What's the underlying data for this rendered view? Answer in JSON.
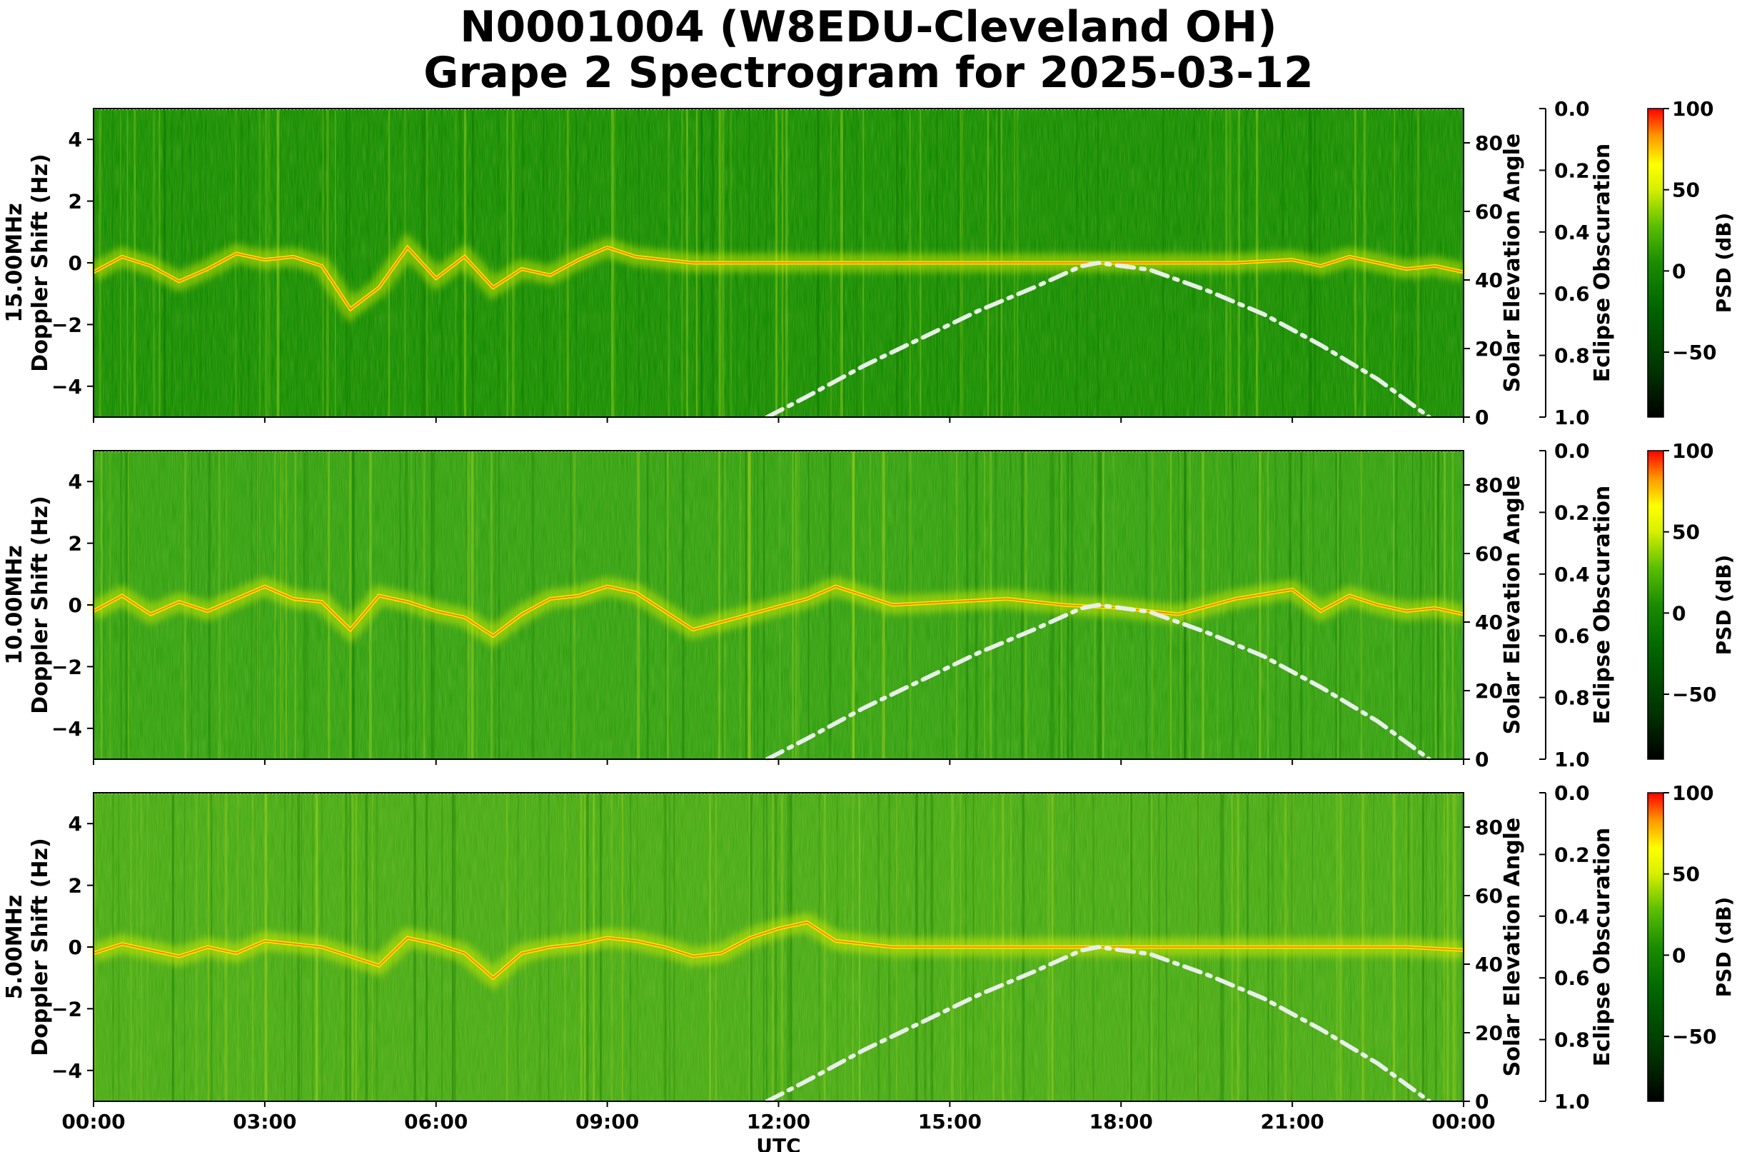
{
  "chart_data": {
    "type": "heatmap",
    "title": "N0001004 (W8EDU-Cleveland OH)",
    "subtitle": "Grape 2 Spectrogram for 2025-03-12",
    "xlabel": "UTC",
    "x_ticks": [
      "00:00",
      "03:00",
      "06:00",
      "09:00",
      "12:00",
      "15:00",
      "18:00",
      "21:00",
      "00:00"
    ],
    "x_range_hours": [
      0,
      24
    ],
    "ylabel": "Doppler Shift (Hz)",
    "ylim": [
      -5,
      5
    ],
    "y_ticks": [
      "4",
      "2",
      "0",
      "−2",
      "−4"
    ],
    "y_tick_values": [
      4,
      2,
      0,
      -2,
      -4
    ],
    "right_axis_label": "Solar Elevation Angle",
    "right_axis_range": [
      0,
      90
    ],
    "right_ticks": [
      "80",
      "60",
      "40",
      "20",
      "0"
    ],
    "right_tick_values": [
      80,
      60,
      40,
      20,
      0
    ],
    "obscuration_label": "Eclipse Obscuration",
    "obscuration_range": [
      0.0,
      1.0
    ],
    "obscuration_ticks": [
      "0.0",
      "0.2",
      "0.4",
      "0.6",
      "0.8",
      "1.0"
    ],
    "colorbar_label": "PSD (dB)",
    "colorbar_range": [
      -90,
      100
    ],
    "colorbar_ticks": [
      "100",
      "50",
      "0",
      "−50"
    ],
    "colorbar_tick_values": [
      100,
      50,
      0,
      -50
    ],
    "colormap": [
      "#000000",
      "#006400",
      "#1a8c00",
      "#3aaa00",
      "#7cd000",
      "#d8f000",
      "#ffff00",
      "#ff8c00",
      "#ff0000"
    ],
    "solar_elevation_curve": {
      "style": "dash-dot",
      "color": "#e8efe8",
      "points_hours": [
        11.8,
        12.5,
        13.5,
        14.5,
        15.5,
        16.5,
        17.3,
        17.6,
        18.5,
        19.5,
        20.5,
        21.5,
        22.5,
        23.4
      ],
      "points_degrees": [
        0,
        6,
        15,
        23,
        31,
        38,
        44,
        45,
        43,
        37,
        30,
        21,
        11,
        0
      ]
    },
    "panels": [
      {
        "name": "15.00MHz",
        "ylabel_top": "15.00MHz",
        "ylabel_bottom": "Doppler Shift (Hz)",
        "background": "#118a00",
        "trace_hours": [
          0,
          0.5,
          1,
          1.5,
          2,
          2.5,
          3,
          3.5,
          4,
          4.5,
          5,
          5.5,
          6,
          6.5,
          7,
          7.5,
          8,
          8.5,
          9,
          9.5,
          10,
          10.5,
          13,
          14,
          15,
          16,
          17,
          18,
          19,
          20,
          21,
          21.5,
          22,
          22.5,
          23,
          23.5,
          24
        ],
        "trace_hz": [
          -0.3,
          0.2,
          -0.1,
          -0.6,
          -0.2,
          0.3,
          0.1,
          0.2,
          -0.1,
          -1.5,
          -0.8,
          0.5,
          -0.5,
          0.2,
          -0.8,
          -0.2,
          -0.4,
          0.1,
          0.5,
          0.2,
          0.1,
          0.0,
          0.0,
          0.0,
          0.0,
          0.0,
          0.0,
          0.0,
          0.0,
          0.0,
          0.1,
          -0.1,
          0.2,
          0.0,
          -0.2,
          -0.1,
          -0.3
        ]
      },
      {
        "name": "10.00MHz",
        "ylabel_top": "10.00MHz",
        "ylabel_bottom": "Doppler Shift (Hz)",
        "background": "#2f9e10",
        "trace_hours": [
          0,
          0.5,
          1,
          1.5,
          2,
          2.5,
          3,
          3.5,
          4,
          4.5,
          5,
          5.5,
          6,
          6.5,
          7,
          7.5,
          8,
          8.5,
          9,
          9.5,
          10,
          10.5,
          12.5,
          13,
          14,
          15,
          16,
          17,
          18,
          19,
          20,
          21,
          21.5,
          22,
          22.5,
          23,
          23.5,
          24
        ],
        "trace_hz": [
          -0.2,
          0.3,
          -0.3,
          0.1,
          -0.2,
          0.2,
          0.6,
          0.2,
          0.1,
          -0.8,
          0.3,
          0.1,
          -0.2,
          -0.4,
          -1.0,
          -0.3,
          0.2,
          0.3,
          0.6,
          0.4,
          -0.2,
          -0.8,
          0.2,
          0.6,
          0.0,
          0.1,
          0.2,
          0.0,
          -0.1,
          -0.3,
          0.2,
          0.5,
          -0.2,
          0.3,
          0.0,
          -0.2,
          -0.1,
          -0.3
        ]
      },
      {
        "name": "5.00MHz",
        "ylabel_top": "5.00MHz",
        "ylabel_bottom": "Doppler Shift (Hz)",
        "background": "#44a814",
        "trace_hours": [
          0,
          0.5,
          1,
          1.5,
          2,
          2.5,
          3,
          3.5,
          4,
          4.5,
          5,
          5.5,
          6,
          6.5,
          7,
          7.5,
          8,
          8.5,
          9,
          9.5,
          10,
          10.5,
          11,
          11.5,
          12,
          12.5,
          13,
          14,
          15,
          16,
          17,
          18,
          19,
          20,
          21,
          22,
          23,
          24
        ],
        "trace_hz": [
          -0.2,
          0.1,
          -0.1,
          -0.3,
          0.0,
          -0.2,
          0.2,
          0.1,
          0.0,
          -0.3,
          -0.6,
          0.3,
          0.1,
          -0.2,
          -1.0,
          -0.2,
          0.0,
          0.1,
          0.3,
          0.2,
          0.0,
          -0.3,
          -0.2,
          0.3,
          0.6,
          0.8,
          0.2,
          0.0,
          0.0,
          0.0,
          0.0,
          0.0,
          0.0,
          0.0,
          0.0,
          0.0,
          0.0,
          -0.1
        ]
      }
    ]
  }
}
